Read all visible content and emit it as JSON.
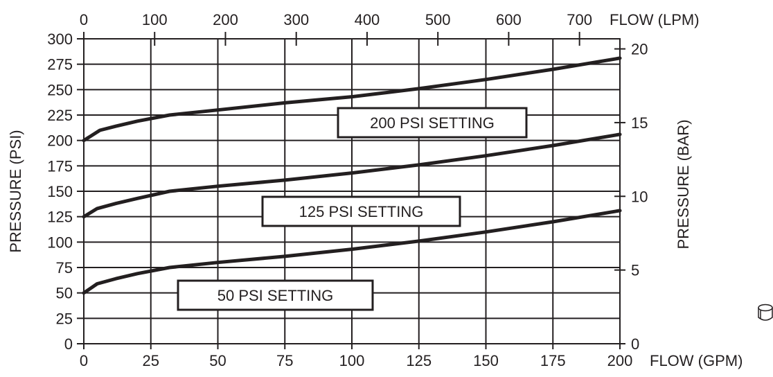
{
  "chart_data": {
    "type": "line",
    "x_bottom": {
      "label": "FLOW (GPM)",
      "ticks": [
        0,
        25,
        50,
        75,
        100,
        125,
        150,
        175,
        200
      ],
      "range": [
        0,
        200
      ]
    },
    "x_top": {
      "label": "FLOW (LPM)",
      "ticks": [
        0,
        100,
        200,
        300,
        400,
        500,
        600,
        700
      ]
    },
    "y_left": {
      "label": "PRESSURE (PSI)",
      "ticks": [
        0,
        25,
        50,
        75,
        100,
        125,
        150,
        175,
        200,
        225,
        250,
        275,
        300
      ],
      "range": [
        0,
        300
      ]
    },
    "y_right": {
      "label": "PRESSURE (BAR)",
      "ticks": [
        0,
        5,
        10,
        15,
        20
      ]
    },
    "grid": true,
    "series": [
      {
        "name": "200 PSI SETTING",
        "x": [
          0,
          6,
          12,
          20,
          32,
          50,
          75,
          100,
          125,
          150,
          175,
          200
        ],
        "y": [
          200,
          210,
          214,
          219,
          225,
          230,
          237,
          243,
          251,
          260,
          270,
          281
        ]
      },
      {
        "name": "125 PSI SETTING",
        "x": [
          0,
          5,
          12,
          20,
          32,
          50,
          75,
          100,
          125,
          150,
          175,
          200
        ],
        "y": [
          125,
          133,
          138,
          143,
          150,
          155,
          161,
          168,
          176,
          185,
          195,
          206
        ]
      },
      {
        "name": "50 PSI SETTING",
        "x": [
          0,
          5,
          12,
          20,
          32,
          50,
          75,
          100,
          125,
          150,
          175,
          200
        ],
        "y": [
          50,
          59,
          64,
          69,
          75,
          80,
          86,
          93,
          101,
          110,
          120,
          131
        ]
      }
    ]
  },
  "decor": {
    "icon": "cylinder-icon"
  }
}
